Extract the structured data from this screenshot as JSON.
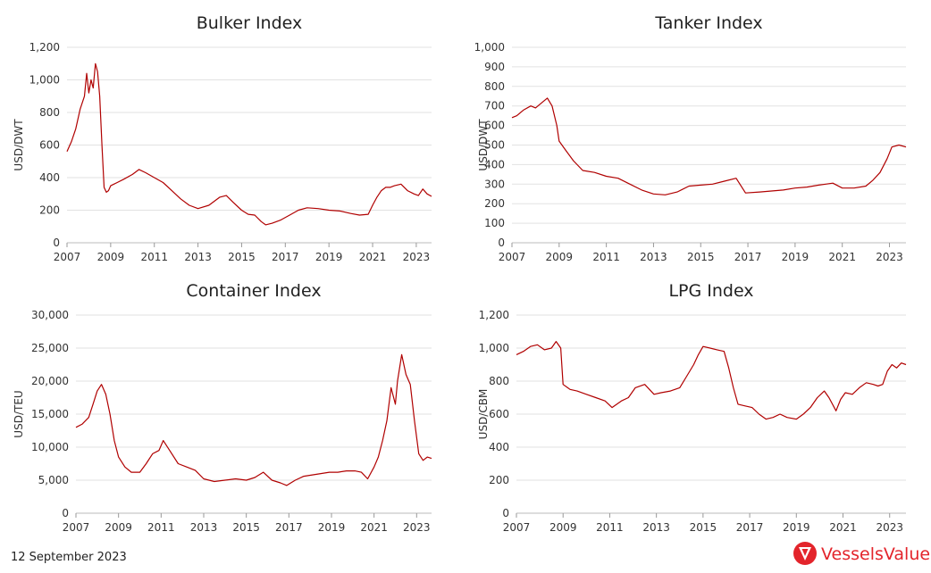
{
  "footer": {
    "date": "12 September 2023"
  },
  "brand": {
    "name": "VesselsValue",
    "color": "#e3242b"
  },
  "line_color": "#b00000",
  "chart_data": [
    {
      "type": "line",
      "title": "Bulker Index",
      "ylabel": "USD/DWT",
      "ylim": [
        0,
        1200
      ],
      "yticks": [
        0,
        200,
        400,
        600,
        800,
        1000,
        1200
      ],
      "ytick_labels": [
        "0",
        "200",
        "400",
        "600",
        "800",
        "1,000",
        "1,200"
      ],
      "xlim": [
        2007,
        2023.7
      ],
      "xticks": [
        2007,
        2009,
        2011,
        2013,
        2015,
        2017,
        2019,
        2021,
        2023
      ],
      "xtick_labels": [
        "2007",
        "2009",
        "2011",
        "2013",
        "2015",
        "2017",
        "2019",
        "2021",
        "2023"
      ],
      "grid": true,
      "series": [
        {
          "x": [
            2007.0,
            2007.2,
            2007.4,
            2007.6,
            2007.8,
            2007.9,
            2008.0,
            2008.1,
            2008.2,
            2008.3,
            2008.4,
            2008.5,
            2008.6,
            2008.7,
            2008.8,
            2008.9,
            2009.0,
            2009.3,
            2009.6,
            2010.0,
            2010.3,
            2010.6,
            2011.0,
            2011.4,
            2011.8,
            2012.2,
            2012.6,
            2013.0,
            2013.5,
            2014.0,
            2014.3,
            2014.6,
            2015.0,
            2015.3,
            2015.6,
            2015.9,
            2016.1,
            2016.4,
            2016.8,
            2017.2,
            2017.6,
            2018.0,
            2018.5,
            2019.0,
            2019.5,
            2020.0,
            2020.4,
            2020.8,
            2021.0,
            2021.2,
            2021.4,
            2021.6,
            2021.8,
            2022.0,
            2022.3,
            2022.6,
            2022.9,
            2023.1,
            2023.3,
            2023.5,
            2023.7
          ],
          "y": [
            560,
            620,
            700,
            820,
            900,
            1040,
            920,
            1000,
            950,
            1100,
            1050,
            900,
            600,
            340,
            310,
            320,
            350,
            370,
            390,
            420,
            450,
            430,
            400,
            370,
            320,
            270,
            230,
            210,
            230,
            280,
            290,
            250,
            200,
            175,
            170,
            130,
            110,
            120,
            140,
            170,
            200,
            215,
            210,
            200,
            195,
            180,
            170,
            175,
            230,
            280,
            320,
            340,
            340,
            350,
            360,
            320,
            300,
            290,
            330,
            300,
            285
          ]
        }
      ]
    },
    {
      "type": "line",
      "title": "Tanker Index",
      "ylabel": "USD/DWT",
      "ylim": [
        0,
        1000
      ],
      "yticks": [
        0,
        100,
        200,
        300,
        400,
        500,
        600,
        700,
        800,
        900,
        1000
      ],
      "ytick_labels": [
        "0",
        "100",
        "200",
        "300",
        "400",
        "500",
        "600",
        "700",
        "800",
        "900",
        "1,000"
      ],
      "xlim": [
        2007,
        2023.7
      ],
      "xticks": [
        2007,
        2009,
        2011,
        2013,
        2015,
        2017,
        2019,
        2021,
        2023
      ],
      "xtick_labels": [
        "2007",
        "2009",
        "2011",
        "2013",
        "2015",
        "2017",
        "2019",
        "2021",
        "2023"
      ],
      "grid": true,
      "series": [
        {
          "x": [
            2007.0,
            2007.2,
            2007.5,
            2007.8,
            2008.0,
            2008.3,
            2008.5,
            2008.7,
            2008.9,
            2009.0,
            2009.3,
            2009.6,
            2010.0,
            2010.5,
            2011.0,
            2011.5,
            2012.0,
            2012.5,
            2013.0,
            2013.5,
            2014.0,
            2014.5,
            2015.0,
            2015.5,
            2016.0,
            2016.5,
            2016.9,
            2017.5,
            2018.0,
            2018.5,
            2019.0,
            2019.5,
            2020.0,
            2020.3,
            2020.6,
            2021.0,
            2021.5,
            2022.0,
            2022.3,
            2022.6,
            2022.9,
            2023.1,
            2023.4,
            2023.7
          ],
          "y": [
            640,
            650,
            680,
            700,
            690,
            720,
            740,
            700,
            600,
            520,
            470,
            420,
            370,
            360,
            340,
            330,
            300,
            270,
            250,
            245,
            260,
            290,
            295,
            300,
            315,
            330,
            255,
            260,
            265,
            270,
            280,
            285,
            295,
            300,
            305,
            280,
            280,
            290,
            320,
            360,
            430,
            490,
            500,
            490
          ]
        }
      ]
    },
    {
      "type": "line",
      "title": "Container Index",
      "ylabel": "USD/TEU",
      "ylim": [
        0,
        30000
      ],
      "yticks": [
        0,
        5000,
        10000,
        15000,
        20000,
        25000,
        30000
      ],
      "ytick_labels": [
        "0",
        "5,000",
        "10,000",
        "15,000",
        "20,000",
        "25,000",
        "30,000"
      ],
      "xlim": [
        2007,
        2023.7
      ],
      "xticks": [
        2007,
        2009,
        2011,
        2013,
        2015,
        2017,
        2019,
        2021,
        2023
      ],
      "xtick_labels": [
        "2007",
        "2009",
        "2011",
        "2013",
        "2015",
        "2017",
        "2019",
        "2021",
        "2023"
      ],
      "grid": true,
      "series": [
        {
          "x": [
            2007.0,
            2007.3,
            2007.6,
            2007.8,
            2008.0,
            2008.2,
            2008.4,
            2008.6,
            2008.8,
            2009.0,
            2009.3,
            2009.6,
            2010.0,
            2010.3,
            2010.6,
            2010.9,
            2011.1,
            2011.4,
            2011.8,
            2012.2,
            2012.6,
            2013.0,
            2013.5,
            2014.0,
            2014.5,
            2015.0,
            2015.4,
            2015.8,
            2016.2,
            2016.6,
            2016.9,
            2017.3,
            2017.7,
            2018.1,
            2018.5,
            2018.9,
            2019.3,
            2019.7,
            2020.1,
            2020.4,
            2020.7,
            2021.0,
            2021.2,
            2021.4,
            2021.6,
            2021.8,
            2022.0,
            2022.1,
            2022.3,
            2022.5,
            2022.7,
            2022.9,
            2023.1,
            2023.3,
            2023.5,
            2023.7
          ],
          "y": [
            13000,
            13500,
            14500,
            16500,
            18500,
            19500,
            18000,
            15000,
            11000,
            8500,
            7000,
            6200,
            6200,
            7500,
            9000,
            9500,
            11000,
            9500,
            7500,
            7000,
            6500,
            5200,
            4800,
            5000,
            5200,
            5000,
            5400,
            6200,
            5000,
            4600,
            4200,
            5000,
            5600,
            5800,
            6000,
            6200,
            6200,
            6400,
            6400,
            6200,
            5200,
            7000,
            8500,
            11000,
            14000,
            19000,
            16500,
            20000,
            24000,
            21000,
            19500,
            14000,
            9000,
            8000,
            8500,
            8300
          ]
        }
      ]
    },
    {
      "type": "line",
      "title": "LPG Index",
      "ylabel": "USD/CBM",
      "ylim": [
        0,
        1200
      ],
      "yticks": [
        0,
        200,
        400,
        600,
        800,
        1000,
        1200
      ],
      "ytick_labels": [
        "0",
        "200",
        "400",
        "600",
        "800",
        "1,000",
        "1,200"
      ],
      "xlim": [
        2007,
        2023.7
      ],
      "xticks": [
        2007,
        2009,
        2011,
        2013,
        2015,
        2017,
        2019,
        2021,
        2023
      ],
      "xtick_labels": [
        "2007",
        "2009",
        "2011",
        "2013",
        "2015",
        "2017",
        "2019",
        "2021",
        "2023"
      ],
      "grid": true,
      "series": [
        {
          "x": [
            2007.0,
            2007.3,
            2007.6,
            2007.9,
            2008.2,
            2008.5,
            2008.7,
            2008.9,
            2009.0,
            2009.3,
            2009.6,
            2010.0,
            2010.4,
            2010.8,
            2011.1,
            2011.5,
            2011.8,
            2012.1,
            2012.5,
            2012.9,
            2013.2,
            2013.6,
            2014.0,
            2014.3,
            2014.6,
            2014.8,
            2015.0,
            2015.3,
            2015.6,
            2015.9,
            2016.1,
            2016.3,
            2016.5,
            2016.8,
            2017.1,
            2017.4,
            2017.7,
            2018.0,
            2018.3,
            2018.6,
            2019.0,
            2019.3,
            2019.6,
            2019.9,
            2020.2,
            2020.4,
            2020.7,
            2020.9,
            2021.1,
            2021.4,
            2021.7,
            2022.0,
            2022.3,
            2022.5,
            2022.7,
            2022.9,
            2023.1,
            2023.3,
            2023.5,
            2023.7
          ],
          "y": [
            960,
            980,
            1010,
            1020,
            990,
            1000,
            1040,
            1000,
            780,
            750,
            740,
            720,
            700,
            680,
            640,
            680,
            700,
            760,
            780,
            720,
            730,
            740,
            760,
            830,
            900,
            960,
            1010,
            1000,
            990,
            980,
            880,
            760,
            660,
            650,
            640,
            600,
            570,
            580,
            600,
            580,
            570,
            600,
            640,
            700,
            740,
            700,
            620,
            690,
            730,
            720,
            760,
            790,
            780,
            770,
            780,
            860,
            900,
            880,
            910,
            900
          ]
        }
      ]
    }
  ]
}
